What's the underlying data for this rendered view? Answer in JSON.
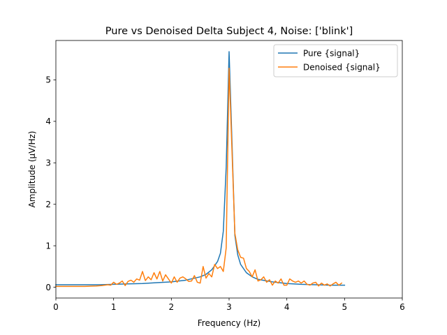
{
  "chart_data": {
    "type": "line",
    "title": "Pure vs Denoised Delta Subject 4, Noise: ['blink']",
    "xlabel": "Frequency (Hz)",
    "ylabel": "Amplitude (μV/Hz)",
    "xlim": [
      0,
      6
    ],
    "ylim": [
      -0.26,
      5.95
    ],
    "xticks": [
      0,
      1,
      2,
      3,
      4,
      5,
      6
    ],
    "yticks": [
      0,
      1,
      2,
      3,
      4,
      5
    ],
    "legend_position": "upper right",
    "grid": false,
    "series": [
      {
        "name": "Pure {signal}",
        "color": "#1f77b4",
        "x": [
          0,
          0.25,
          0.5,
          0.75,
          1.0,
          1.25,
          1.5,
          1.75,
          2.0,
          2.25,
          2.5,
          2.6,
          2.7,
          2.8,
          2.85,
          2.9,
          2.95,
          3.0,
          3.05,
          3.1,
          3.15,
          3.2,
          3.3,
          3.4,
          3.5,
          3.75,
          4.0,
          4.25,
          4.5,
          4.75,
          5.0
        ],
        "y": [
          0.06,
          0.06,
          0.06,
          0.06,
          0.07,
          0.08,
          0.09,
          0.11,
          0.13,
          0.17,
          0.25,
          0.31,
          0.42,
          0.62,
          0.82,
          1.35,
          2.9,
          5.68,
          3.5,
          1.25,
          0.78,
          0.55,
          0.35,
          0.25,
          0.19,
          0.13,
          0.09,
          0.07,
          0.06,
          0.05,
          0.05
        ]
      },
      {
        "name": "Denoised {signal}",
        "color": "#ff7f0e",
        "x": [
          0,
          0.25,
          0.5,
          0.7,
          0.8,
          0.9,
          0.95,
          1.0,
          1.05,
          1.1,
          1.15,
          1.2,
          1.25,
          1.3,
          1.35,
          1.4,
          1.45,
          1.5,
          1.55,
          1.6,
          1.65,
          1.7,
          1.75,
          1.8,
          1.85,
          1.9,
          1.95,
          2.0,
          2.05,
          2.1,
          2.15,
          2.2,
          2.25,
          2.3,
          2.35,
          2.4,
          2.45,
          2.5,
          2.55,
          2.6,
          2.65,
          2.7,
          2.75,
          2.8,
          2.85,
          2.9,
          2.95,
          3.0,
          3.05,
          3.1,
          3.15,
          3.2,
          3.25,
          3.3,
          3.35,
          3.4,
          3.45,
          3.5,
          3.55,
          3.6,
          3.65,
          3.7,
          3.75,
          3.8,
          3.85,
          3.9,
          3.95,
          4.0,
          4.05,
          4.1,
          4.15,
          4.2,
          4.25,
          4.3,
          4.35,
          4.4,
          4.45,
          4.5,
          4.55,
          4.6,
          4.65,
          4.7,
          4.75,
          4.8,
          4.85,
          4.9,
          4.95
        ],
        "y": [
          0.02,
          0.02,
          0.02,
          0.03,
          0.04,
          0.06,
          0.05,
          0.12,
          0.07,
          0.1,
          0.15,
          0.04,
          0.14,
          0.17,
          0.12,
          0.2,
          0.17,
          0.38,
          0.16,
          0.25,
          0.18,
          0.35,
          0.2,
          0.38,
          0.15,
          0.3,
          0.2,
          0.1,
          0.25,
          0.12,
          0.22,
          0.25,
          0.2,
          0.14,
          0.15,
          0.28,
          0.12,
          0.1,
          0.5,
          0.22,
          0.33,
          0.25,
          0.55,
          0.45,
          0.5,
          0.38,
          0.95,
          5.28,
          3.3,
          1.3,
          0.9,
          0.72,
          0.7,
          0.45,
          0.38,
          0.25,
          0.42,
          0.15,
          0.18,
          0.25,
          0.12,
          0.18,
          0.05,
          0.15,
          0.1,
          0.2,
          0.05,
          0.05,
          0.2,
          0.15,
          0.12,
          0.15,
          0.1,
          0.15,
          0.07,
          0.05,
          0.1,
          0.12,
          0.03,
          0.1,
          0.05,
          0.08,
          0.03,
          0.08,
          0.12,
          0.05,
          0.1
        ]
      }
    ]
  }
}
